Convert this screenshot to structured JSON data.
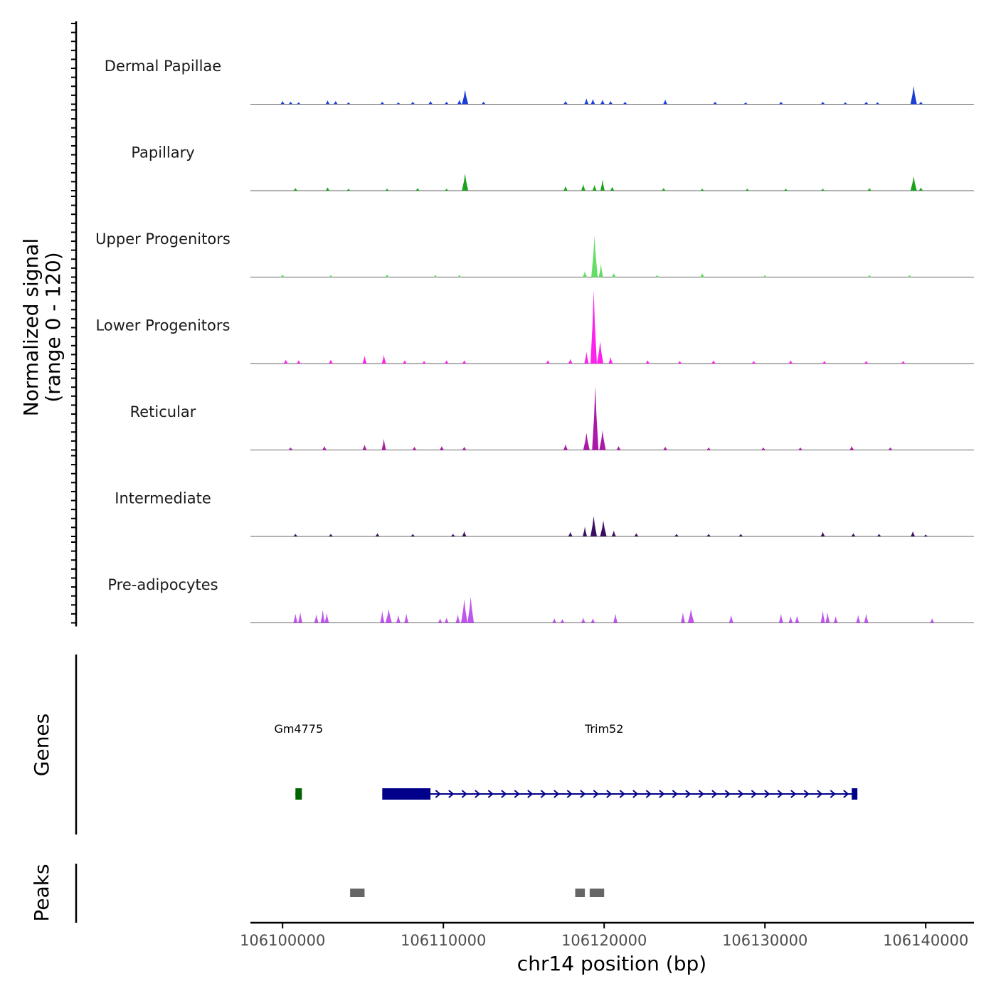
{
  "chart_data": {
    "type": "area",
    "title": "",
    "ylabel": "Normalized signal",
    "ylabel_range": "(range 0 - 120)",
    "ylim": [
      0,
      120
    ],
    "xlabel": "chr14 position (bp)",
    "xlim": [
      106098000,
      106143000
    ],
    "x_ticks": [
      106100000,
      106110000,
      106120000,
      106130000,
      106140000
    ],
    "x_tick_labels": [
      "106100000",
      "106110000",
      "106120000",
      "106130000",
      "106140000"
    ],
    "tracks": [
      {
        "name": "Dermal Papillae",
        "color": "#1a3fd6",
        "peaks": [
          [
            106100000,
            5
          ],
          [
            106100500,
            4
          ],
          [
            106101000,
            3
          ],
          [
            106102800,
            6
          ],
          [
            106103300,
            5
          ],
          [
            106104100,
            3
          ],
          [
            106106200,
            4
          ],
          [
            106107200,
            3
          ],
          [
            106108100,
            4
          ],
          [
            106109200,
            5
          ],
          [
            106110200,
            4
          ],
          [
            106111000,
            7
          ],
          [
            106111350,
            22
          ],
          [
            106112500,
            4
          ],
          [
            106117600,
            5
          ],
          [
            106118900,
            9
          ],
          [
            106119300,
            8
          ],
          [
            106119900,
            7
          ],
          [
            106120400,
            5
          ],
          [
            106121300,
            4
          ],
          [
            106123800,
            7
          ],
          [
            106126900,
            4
          ],
          [
            106128800,
            3
          ],
          [
            106131000,
            4
          ],
          [
            106133600,
            4
          ],
          [
            106135000,
            3
          ],
          [
            106136300,
            4
          ],
          [
            106137000,
            3
          ],
          [
            106139250,
            28
          ],
          [
            106139700,
            4
          ]
        ]
      },
      {
        "name": "Papillary",
        "color": "#1ba31b",
        "peaks": [
          [
            106100800,
            4
          ],
          [
            106102800,
            5
          ],
          [
            106104100,
            3
          ],
          [
            106106500,
            3
          ],
          [
            106108400,
            4
          ],
          [
            106110200,
            3
          ],
          [
            106111350,
            26
          ],
          [
            106117600,
            7
          ],
          [
            106118700,
            10
          ],
          [
            106119400,
            9
          ],
          [
            106119900,
            17
          ],
          [
            106120500,
            6
          ],
          [
            106123700,
            4
          ],
          [
            106126100,
            3
          ],
          [
            106128900,
            3
          ],
          [
            106131300,
            3
          ],
          [
            106133600,
            3
          ],
          [
            106136500,
            4
          ],
          [
            106139250,
            22
          ],
          [
            106139700,
            5
          ]
        ]
      },
      {
        "name": "Upper Progenitors",
        "color": "#66dd66",
        "peaks": [
          [
            106100000,
            4
          ],
          [
            106103000,
            3
          ],
          [
            106106500,
            4
          ],
          [
            106109500,
            3
          ],
          [
            106111000,
            3
          ],
          [
            106118800,
            9
          ],
          [
            106119400,
            63
          ],
          [
            106119800,
            20
          ],
          [
            106120600,
            6
          ],
          [
            106123300,
            3
          ],
          [
            106126100,
            6
          ],
          [
            106130000,
            3
          ],
          [
            106136500,
            3
          ],
          [
            106139000,
            3
          ]
        ]
      },
      {
        "name": "Lower Progenitors",
        "color": "#ff22ee",
        "peaks": [
          [
            106100200,
            6
          ],
          [
            106101000,
            5
          ],
          [
            106103000,
            6
          ],
          [
            106105100,
            12
          ],
          [
            106106300,
            13
          ],
          [
            106107600,
            5
          ],
          [
            106108800,
            4
          ],
          [
            106110200,
            5
          ],
          [
            106111300,
            5
          ],
          [
            106116500,
            5
          ],
          [
            106117900,
            7
          ],
          [
            106118900,
            18
          ],
          [
            106119350,
            112
          ],
          [
            106119750,
            34
          ],
          [
            106120400,
            10
          ],
          [
            106122700,
            5
          ],
          [
            106124700,
            4
          ],
          [
            106126800,
            5
          ],
          [
            106129300,
            4
          ],
          [
            106131600,
            5
          ],
          [
            106133700,
            4
          ],
          [
            106136300,
            4
          ],
          [
            106138600,
            4
          ]
        ]
      },
      {
        "name": "Reticular",
        "color": "#aa1aa6",
        "peaks": [
          [
            106100500,
            4
          ],
          [
            106102600,
            6
          ],
          [
            106105100,
            8
          ],
          [
            106106300,
            17
          ],
          [
            106108200,
            5
          ],
          [
            106109900,
            6
          ],
          [
            106111300,
            5
          ],
          [
            106117600,
            9
          ],
          [
            106118900,
            26
          ],
          [
            106119450,
            97
          ],
          [
            106119900,
            30
          ],
          [
            106120900,
            6
          ],
          [
            106123800,
            5
          ],
          [
            106126500,
            4
          ],
          [
            106129900,
            4
          ],
          [
            106132200,
            4
          ],
          [
            106135400,
            6
          ],
          [
            106137800,
            4
          ]
        ]
      },
      {
        "name": "Intermediate",
        "color": "#3a0f5e",
        "peaks": [
          [
            106100800,
            4
          ],
          [
            106103000,
            4
          ],
          [
            106105900,
            5
          ],
          [
            106108100,
            4
          ],
          [
            106110600,
            4
          ],
          [
            106111300,
            8
          ],
          [
            106117900,
            7
          ],
          [
            106118800,
            15
          ],
          [
            106119350,
            31
          ],
          [
            106119950,
            24
          ],
          [
            106120600,
            9
          ],
          [
            106122000,
            5
          ],
          [
            106124500,
            4
          ],
          [
            106126500,
            4
          ],
          [
            106128500,
            4
          ],
          [
            106133600,
            7
          ],
          [
            106135500,
            5
          ],
          [
            106137100,
            4
          ],
          [
            106139200,
            8
          ],
          [
            106140000,
            3
          ]
        ]
      },
      {
        "name": "Pre-adipocytes",
        "color": "#bf55ee",
        "peaks": [
          [
            106100800,
            14
          ],
          [
            106101100,
            16
          ],
          [
            106102100,
            13
          ],
          [
            106102500,
            20
          ],
          [
            106102750,
            15
          ],
          [
            106106200,
            18
          ],
          [
            106106600,
            21
          ],
          [
            106107200,
            12
          ],
          [
            106107700,
            14
          ],
          [
            106109800,
            7
          ],
          [
            106110200,
            8
          ],
          [
            106110900,
            13
          ],
          [
            106111300,
            36
          ],
          [
            106111700,
            40
          ],
          [
            106116900,
            7
          ],
          [
            106117400,
            6
          ],
          [
            106118700,
            8
          ],
          [
            106119300,
            7
          ],
          [
            106120700,
            14
          ],
          [
            106124900,
            16
          ],
          [
            106125400,
            21
          ],
          [
            106127900,
            12
          ],
          [
            106131000,
            14
          ],
          [
            106131600,
            10
          ],
          [
            106132000,
            11
          ],
          [
            106133600,
            19
          ],
          [
            106133900,
            16
          ],
          [
            106134400,
            10
          ],
          [
            106135800,
            12
          ],
          [
            106136300,
            14
          ],
          [
            106140400,
            7
          ]
        ]
      }
    ],
    "genes": [
      {
        "name": "Gm4775",
        "strand": "-",
        "color": "#006400",
        "start": 106100800,
        "end": 106101200,
        "exons": [
          [
            106100800,
            106101200
          ]
        ]
      },
      {
        "name": "Trim52",
        "strand": "+",
        "color": "#00008b",
        "start": 106106200,
        "end": 106135750,
        "exons": [
          [
            106106200,
            106109200
          ],
          [
            106135400,
            106135750
          ]
        ]
      }
    ],
    "gene_label_positions": [
      106101000,
      106120000
    ],
    "peaks_track": [
      [
        106104200,
        106105100
      ],
      [
        106118200,
        106118800
      ],
      [
        106119100,
        106120000
      ]
    ]
  },
  "panels": {
    "genes_title": "Genes",
    "peaks_title": "Peaks"
  },
  "colors": {
    "axis": "#000000",
    "baseline": "#666666",
    "peak_bar": "#666666"
  }
}
